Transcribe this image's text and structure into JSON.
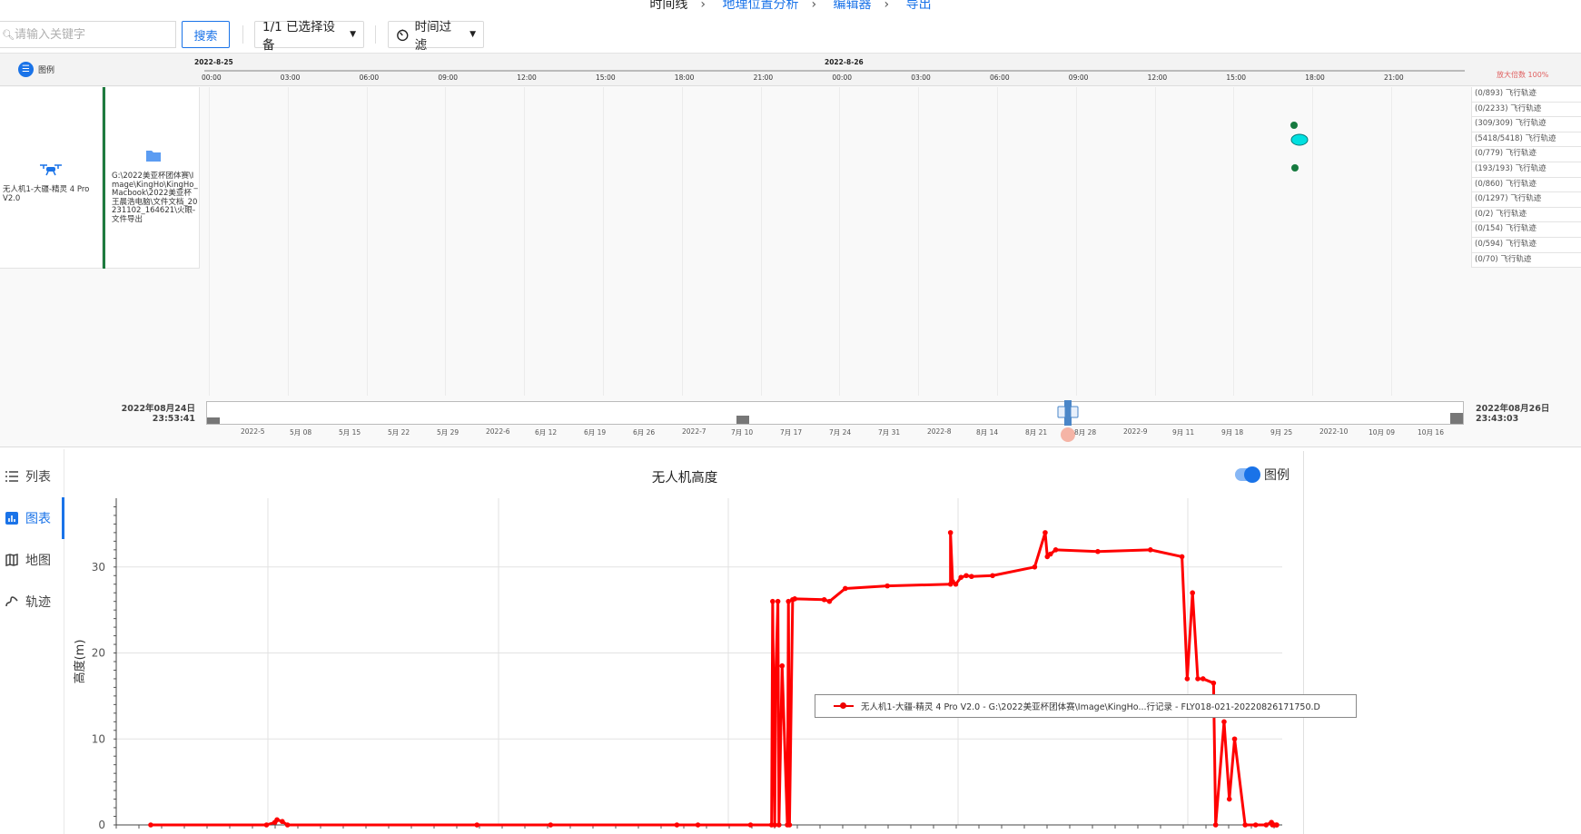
{
  "breadcrumb": [
    "时间线",
    "地理位置分析",
    "编辑器",
    "导出"
  ],
  "toolbar": {
    "search_placeholder": "请输入关键字",
    "search_button": "搜索",
    "device_select": "1/1 已选择设备",
    "time_filter": "时间过滤"
  },
  "timeline": {
    "legend_label": "图例",
    "dates": [
      "2022-8-25",
      "2022-8-26"
    ],
    "hours": [
      "00:00",
      "03:00",
      "06:00",
      "09:00",
      "12:00",
      "15:00",
      "18:00",
      "21:00",
      "00:00",
      "03:00",
      "06:00",
      "09:00",
      "12:00",
      "15:00",
      "18:00",
      "21:00"
    ],
    "zoom_label": "放大倍数 100%",
    "device_name": "无人机1-大疆-精灵 4 Pro V2.0",
    "file_path": "G:\\2022美亚杯团体赛\\Image\\KingHo\\KingHo_Macbook\\2022美亚杯王晨浩电脑\\文件文档_20231102_164621\\火眼-文件导出",
    "tracks": [
      "(0/893) 飞行轨迹",
      "(0/2233) 飞行轨迹",
      "(309/309) 飞行轨迹",
      "(5418/5418) 飞行轨迹",
      "(0/779) 飞行轨迹",
      "(193/193) 飞行轨迹",
      "(0/860) 飞行轨迹",
      "(0/1297) 飞行轨迹",
      "(0/2) 飞行轨迹",
      "(0/154) 飞行轨迹",
      "(0/594) 飞行轨迹",
      "(0/70) 飞行轨迹"
    ],
    "range_start": [
      "2022年08月24日",
      "23:53:41"
    ],
    "range_end": [
      "2022年08月26日",
      "23:43:03"
    ],
    "range_ticks": [
      "2022-5",
      "5月 08",
      "5月 15",
      "5月 22",
      "5月 29",
      "2022-6",
      "6月 12",
      "6月 19",
      "6月 26",
      "2022-7",
      "7月 10",
      "7月 17",
      "7月 24",
      "7月 31",
      "2022-8",
      "8月 14",
      "8月 21",
      "8月 28",
      "2022-9",
      "9月 11",
      "9月 18",
      "9月 25",
      "2022-10",
      "10月 09",
      "10月 16"
    ]
  },
  "sidenav": [
    "列表",
    "图表",
    "地图",
    "轨迹"
  ],
  "chart": {
    "title": "无人机高度",
    "legend_toggle": "图例",
    "ylabel": "高度(m)",
    "yticks": [
      "0",
      "10",
      "20",
      "30"
    ],
    "legend_text": "无人机1-大疆-精灵 4 Pro V2.0 - G:\\2022美亚杯团体赛\\Image\\KingHo...行记录 - FLY018-021-20220826171750.D"
  },
  "chart_data": {
    "type": "line",
    "title": "无人机高度",
    "ylabel": "高度(m)",
    "ylim": [
      0,
      38
    ],
    "series": [
      {
        "name": "无人机1-大疆-精灵 4 Pro V2.0 - G:\\2022美亚杯团体赛\\Image\\KingHo...行记录 - FLY018-021-20220826171750.D",
        "color": "#ff0000",
        "x": [
          0.0,
          0.11,
          0.118,
          0.12,
          0.125,
          0.13,
          0.31,
          0.38,
          0.5,
          0.52,
          0.57,
          0.59,
          0.591,
          0.593,
          0.594,
          0.596,
          0.597,
          0.6,
          0.605,
          0.606,
          0.607,
          0.61,
          0.612,
          0.64,
          0.645,
          0.66,
          0.7,
          0.76,
          0.76,
          0.762,
          0.765,
          0.77,
          0.775,
          0.78,
          0.8,
          0.84,
          0.85,
          0.852,
          0.855,
          0.86,
          0.9,
          0.95,
          0.98,
          0.985,
          0.99,
          0.995,
          1.0,
          1.01,
          1.012,
          1.02,
          1.025,
          1.03,
          1.04,
          1.05,
          1.06,
          1.065,
          1.066,
          1.068,
          1.07,
          1.07
        ],
        "y": [
          0,
          0,
          0.3,
          0.6,
          0.4,
          0,
          0,
          0,
          0,
          0,
          0,
          0,
          26,
          0,
          17.5,
          26,
          0,
          18.5,
          0,
          26,
          0,
          26.2,
          26.3,
          26.2,
          26,
          27.5,
          27.8,
          28,
          34,
          28.3,
          28,
          28.8,
          29,
          28.9,
          29,
          30,
          34,
          31.2,
          31.5,
          32,
          31.8,
          32,
          31.2,
          17,
          27,
          17,
          17,
          16.5,
          0,
          12,
          3,
          10,
          0,
          0,
          0,
          0.3,
          0,
          0,
          0,
          0
        ]
      }
    ]
  },
  "colors": {
    "accent": "#1a73e8",
    "series": "#ff0000",
    "device_bar": "#1e7b3f"
  }
}
